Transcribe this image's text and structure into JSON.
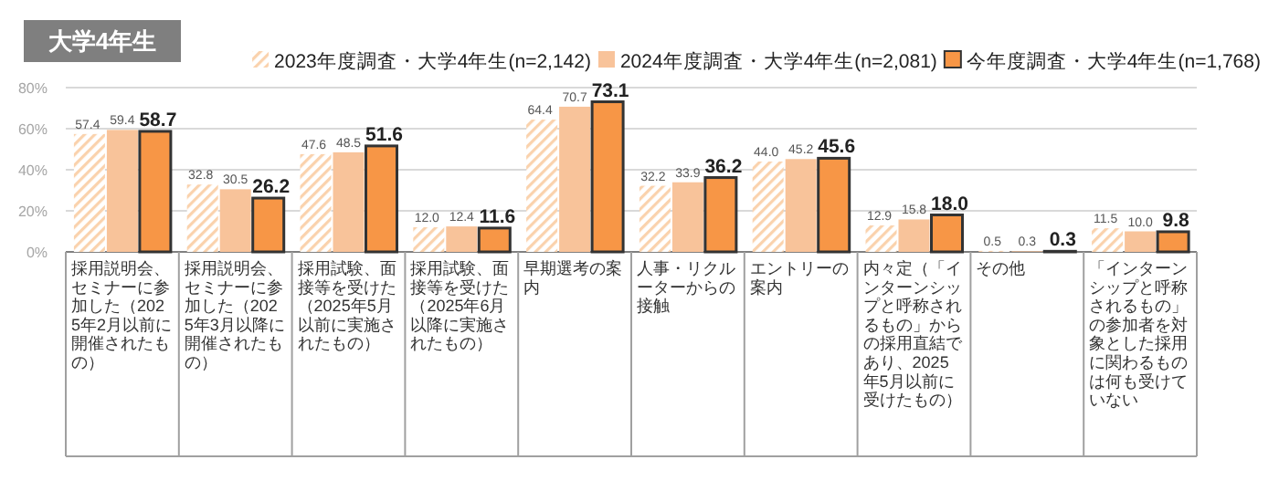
{
  "chart_data": {
    "type": "bar",
    "title": "大学4年生",
    "categories": [
      "採用説明会、セミナーに参加した（2025年2月以前に開催されたもの）",
      "採用説明会、セミナーに参加した（2025年3月以降に開催されたもの）",
      "採用試験、面接等を受けた（2025年5月以前に実施されたもの）",
      "採用試験、面接等を受けた（2025年6月以降に実施されたもの）",
      "早期選考の案内",
      "人事・リクルーターからの接触",
      "エントリーの案内",
      "内々定（「インターンシップと呼称されるもの」からの採用直結であり、2025年5月以前に受けたもの）",
      "その他",
      "「インターンシップと呼称されるもの」の参加者を対象とした採用に関わるものは何も受けていない"
    ],
    "series": [
      {
        "name": "2023年度調査・大学4年生(n=2,142)",
        "color": "#fad2ad",
        "values": [
          57.4,
          32.8,
          47.6,
          12.0,
          64.4,
          32.2,
          44.0,
          12.9,
          0.5,
          11.5
        ],
        "value_labels": [
          "57.4",
          "32.8",
          "47.6",
          "12.0",
          "64.4",
          "32.2",
          "44.0",
          "12.9",
          "0.5",
          "11.5"
        ]
      },
      {
        "name": "2024年度調査・大学4年生(n=2,081)",
        "color": "#f8c39a",
        "values": [
          59.4,
          30.5,
          48.5,
          12.4,
          70.7,
          33.9,
          45.2,
          15.8,
          0.3,
          10.0
        ],
        "value_labels": [
          "59.4",
          "30.5",
          "48.5",
          "12.4",
          "70.7",
          "33.9",
          "45.2",
          "15.8",
          "0.3",
          "10.0"
        ]
      },
      {
        "name": "今年度調査・大学4年生(n=1,768)",
        "color": "#f79646",
        "values": [
          58.7,
          26.2,
          51.6,
          11.6,
          73.1,
          36.2,
          45.6,
          18.0,
          0.3,
          9.8
        ],
        "value_labels": [
          "58.7",
          "26.2",
          "51.6",
          "11.6",
          "73.1",
          "36.2",
          "45.6",
          "18.0",
          "0.3",
          "9.8"
        ]
      }
    ],
    "ylim": [
      0,
      80
    ],
    "yticks": [
      {
        "value": 0,
        "label": "0%"
      },
      {
        "value": 20,
        "label": "20%"
      },
      {
        "value": 40,
        "label": "40%"
      },
      {
        "value": 60,
        "label": "60%"
      },
      {
        "value": 80,
        "label": "80%"
      }
    ],
    "grid": "y",
    "legend": "top"
  }
}
